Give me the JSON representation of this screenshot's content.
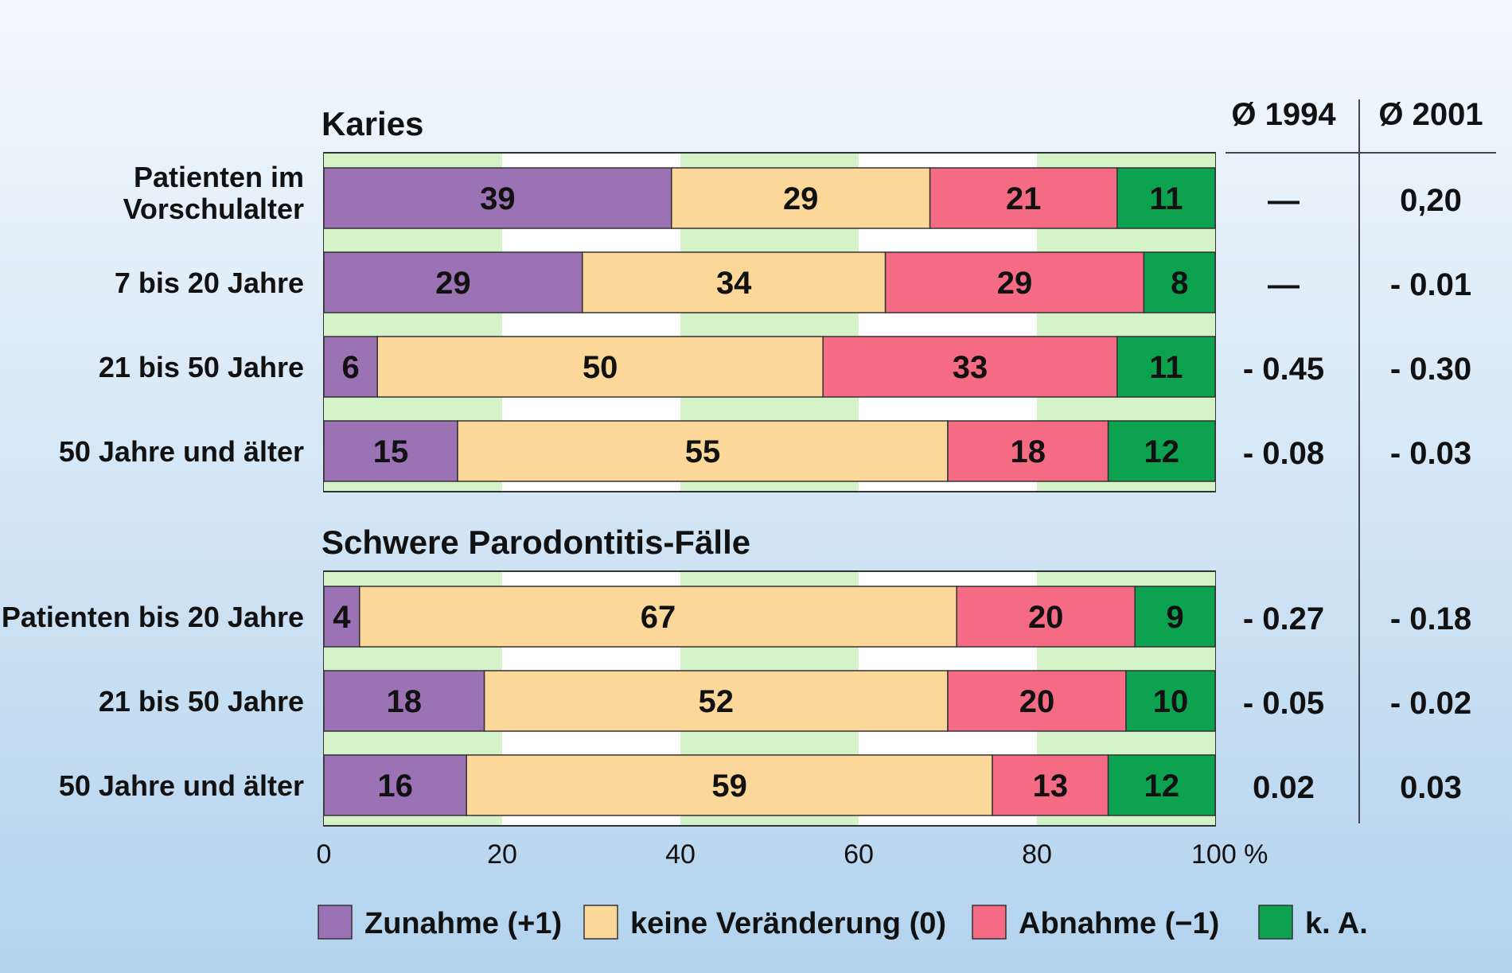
{
  "chart_data": {
    "type": "bar",
    "stacked": true,
    "orientation": "horizontal",
    "xlim": [
      0,
      100
    ],
    "x_ticks": [
      "0",
      "20",
      "40",
      "60",
      "80",
      "100 %"
    ],
    "grid": false,
    "legend_position": "bottom",
    "series": [
      {
        "name": "Zunahme (+1)",
        "color": "#9b72b3"
      },
      {
        "name": "keine Veränderung (0)",
        "color": "#fbd79a"
      },
      {
        "name": "Abnahme (−1)",
        "color": "#f46b83"
      },
      {
        "name": "k. A.",
        "color": "#0da24f"
      }
    ],
    "columns": [
      {
        "header": "Ø 1994"
      },
      {
        "header": "Ø 2001"
      }
    ],
    "sections": [
      {
        "title": "Karies",
        "rows": [
          {
            "label": [
              "Patienten im",
              "Vorschulalter"
            ],
            "values": [
              39,
              29,
              21,
              11
            ],
            "avg_1994": "—",
            "avg_2001": "0,20"
          },
          {
            "label": [
              "7 bis 20 Jahre"
            ],
            "values": [
              29,
              34,
              29,
              8
            ],
            "avg_1994": "—",
            "avg_2001": "- 0.01"
          },
          {
            "label": [
              "21 bis 50 Jahre"
            ],
            "values": [
              6,
              50,
              33,
              11
            ],
            "avg_1994": "- 0.45",
            "avg_2001": "- 0.30"
          },
          {
            "label": [
              "50 Jahre und älter"
            ],
            "values": [
              15,
              55,
              18,
              12
            ],
            "avg_1994": "- 0.08",
            "avg_2001": "- 0.03"
          }
        ]
      },
      {
        "title": "Schwere Parodontitis-Fälle",
        "rows": [
          {
            "label": [
              "Patienten bis 20 Jahre"
            ],
            "values": [
              4,
              67,
              20,
              9
            ],
            "avg_1994": "- 0.27",
            "avg_2001": "- 0.18"
          },
          {
            "label": [
              "21 bis 50 Jahre"
            ],
            "values": [
              18,
              52,
              20,
              10
            ],
            "avg_1994": "- 0.05",
            "avg_2001": "- 0.02"
          },
          {
            "label": [
              "50 Jahre und älter"
            ],
            "values": [
              16,
              59,
              13,
              12
            ],
            "avg_1994": "0.02",
            "avg_2001": "0.03"
          }
        ]
      }
    ]
  }
}
